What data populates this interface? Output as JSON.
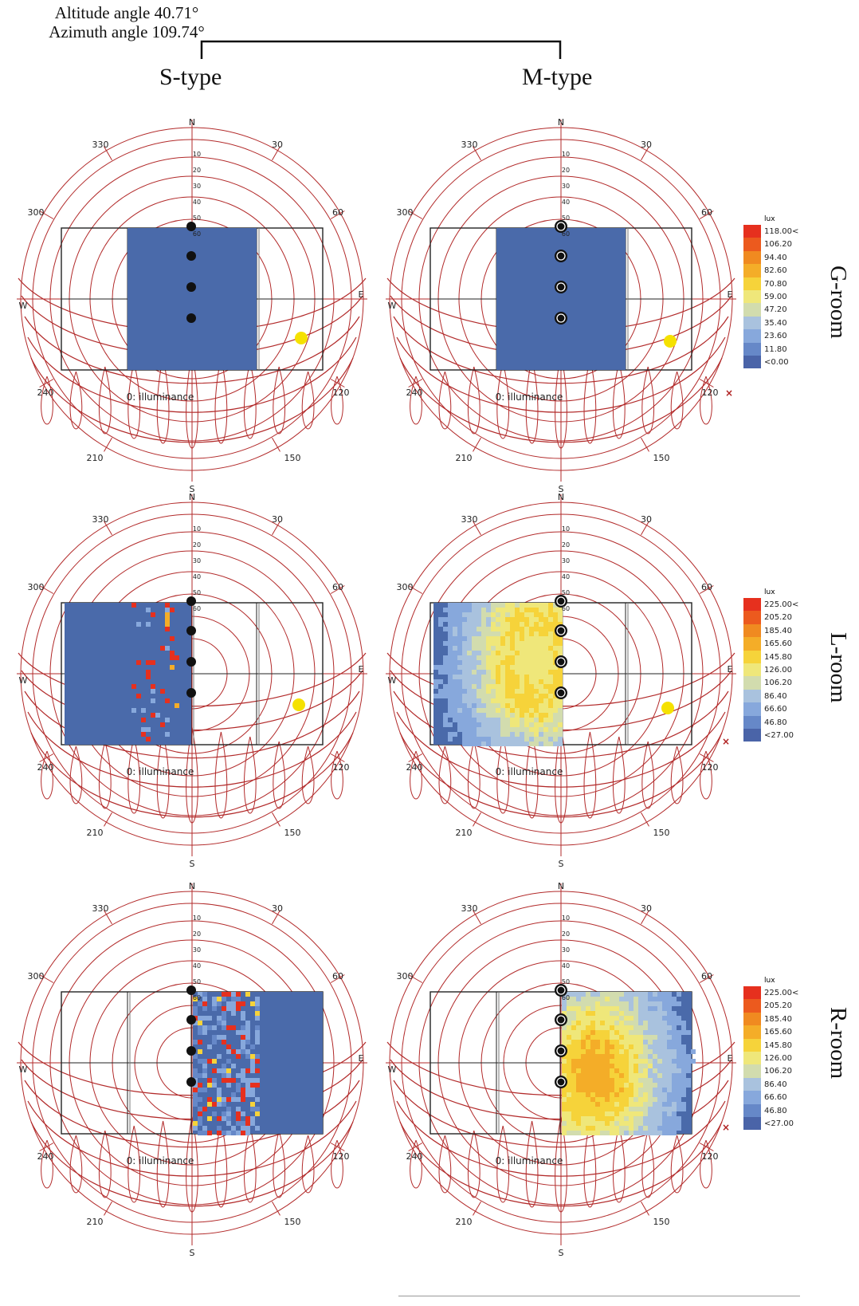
{
  "header": {
    "line1": "Altitude angle 40.71°",
    "line2": "Azimuth angle 109.74°"
  },
  "columns": [
    "S-type",
    "M-type"
  ],
  "rows": [
    "G-room",
    "L-room",
    "R-room"
  ],
  "diagram": {
    "compass": {
      "north": "N",
      "south": "S",
      "east": "E",
      "west": "W"
    },
    "azimuth_labels": [
      "30",
      "60",
      "120",
      "150",
      "210",
      "240",
      "300",
      "330"
    ],
    "altitude_labels": [
      "10",
      "20",
      "30",
      "40",
      "50",
      "60"
    ],
    "illuminance_label": "0: illuminance",
    "colors": {
      "sunpath": "#b22a2a",
      "floor": "#4a6aaa",
      "sun": "#f5e100",
      "frame": "#222222"
    }
  },
  "legends": [
    {
      "unit": "lux",
      "values": [
        "118.00<",
        "106.20",
        "94.40",
        "82.60",
        "70.80",
        "59.00",
        "47.20",
        "35.40",
        "23.60",
        "11.80",
        "<0.00"
      ]
    },
    {
      "unit": "lux",
      "values": [
        "225.00<",
        "205.20",
        "185.40",
        "165.60",
        "145.80",
        "126.00",
        "106.20",
        "86.40",
        "66.60",
        "46.80",
        "<27.00"
      ]
    },
    {
      "unit": "lux",
      "values": [
        "225.00<",
        "205.20",
        "185.40",
        "165.60",
        "145.80",
        "126.00",
        "106.20",
        "86.40",
        "66.60",
        "46.80",
        "<27.00"
      ]
    }
  ],
  "legend_colors": [
    "#e6301e",
    "#ec5a1e",
    "#f08a20",
    "#f4ad28",
    "#f6d33a",
    "#efe77a",
    "#d2dcae",
    "#a9c2de",
    "#87a8dc",
    "#6688c8",
    "#4a64a8"
  ]
}
